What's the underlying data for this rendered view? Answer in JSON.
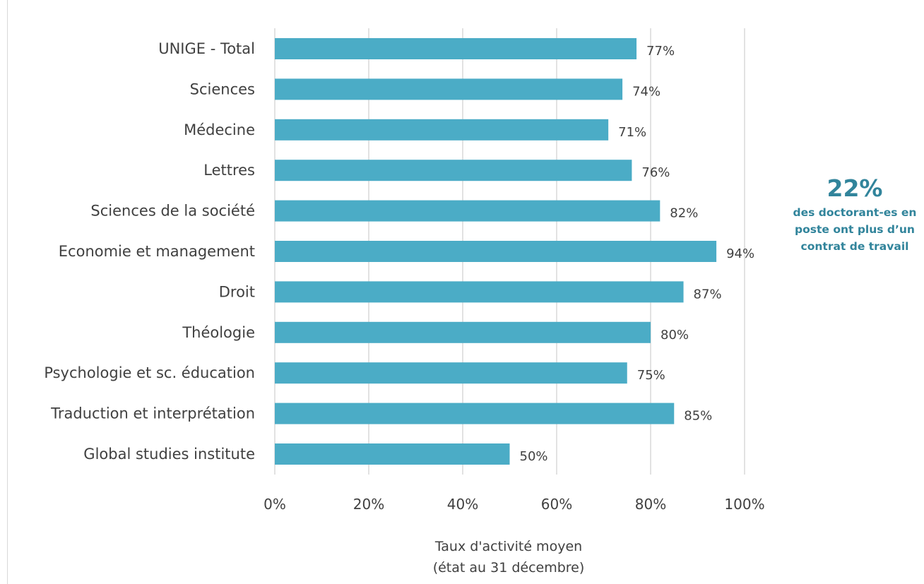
{
  "chart_data": {
    "type": "bar",
    "orientation": "horizontal",
    "categories": [
      "UNIGE - Total",
      "Sciences",
      "Médecine",
      "Lettres",
      "Sciences de la société",
      "Economie et management",
      "Droit",
      "Théologie",
      "Psychologie et sc. éducation",
      "Traduction et interprétation",
      "Global studies institute"
    ],
    "values": [
      77,
      74,
      71,
      76,
      82,
      94,
      87,
      80,
      75,
      85,
      50
    ],
    "data_labels": [
      "77%",
      "74%",
      "71%",
      "76%",
      "82%",
      "94%",
      "87%",
      "80%",
      "75%",
      "85%",
      "50%"
    ],
    "xlim": [
      0,
      100
    ],
    "xticks": [
      "0%",
      "20%",
      "40%",
      "60%",
      "80%",
      "100%"
    ],
    "xlabel_line1": "Taux d'activité moyen",
    "xlabel_line2": "(état au 31 décembre)",
    "grid": "vertical",
    "bar_color": "#4bacc6",
    "legend": "none"
  },
  "callout": {
    "value": "22%",
    "text": "des doctorant-es en poste ont plus d’un contrat de travail",
    "color": "#31849b"
  }
}
